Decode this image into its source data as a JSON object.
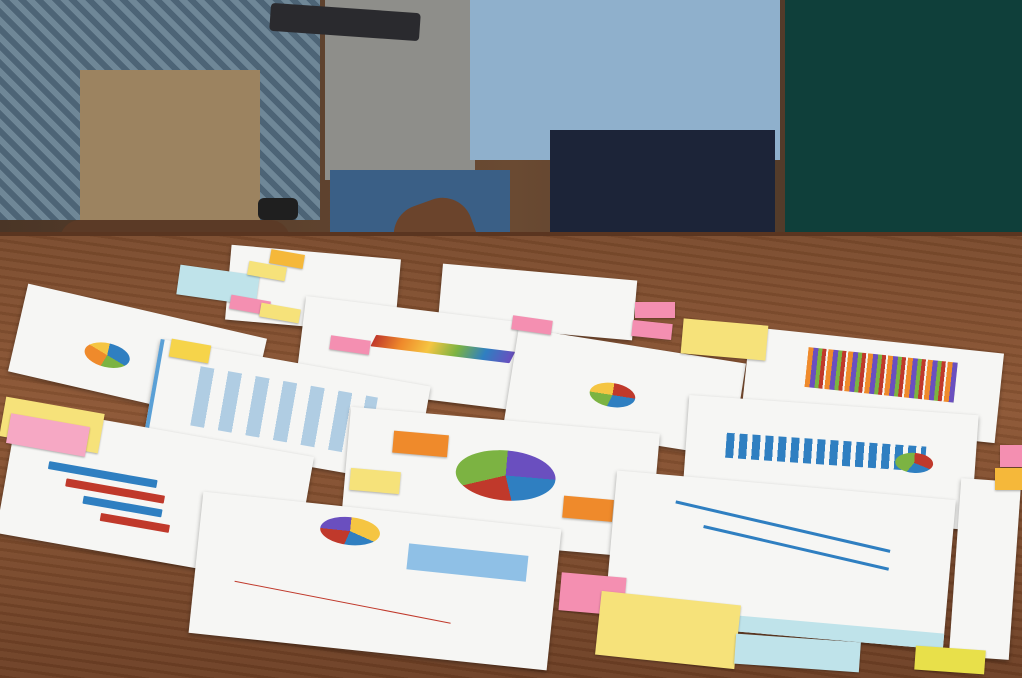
{
  "scene": {
    "colors": {
      "table": "#8c5634",
      "paper": "#f6f6f4",
      "note_yellow": "#f6e27a",
      "note_pink": "#f48fb1",
      "note_orange": "#f5b83a",
      "note_blue": "#bfe3ea",
      "chart_blue": "#2f7fc1",
      "chart_red": "#c0392b",
      "chart_orange": "#ef8a2b",
      "chart_green": "#7cb342",
      "chart_purple": "#6a4fbf"
    },
    "icons": [
      "people",
      "tablet",
      "wristwatch",
      "pie-chart",
      "bar-chart",
      "flowchart",
      "sticky-note"
    ]
  }
}
